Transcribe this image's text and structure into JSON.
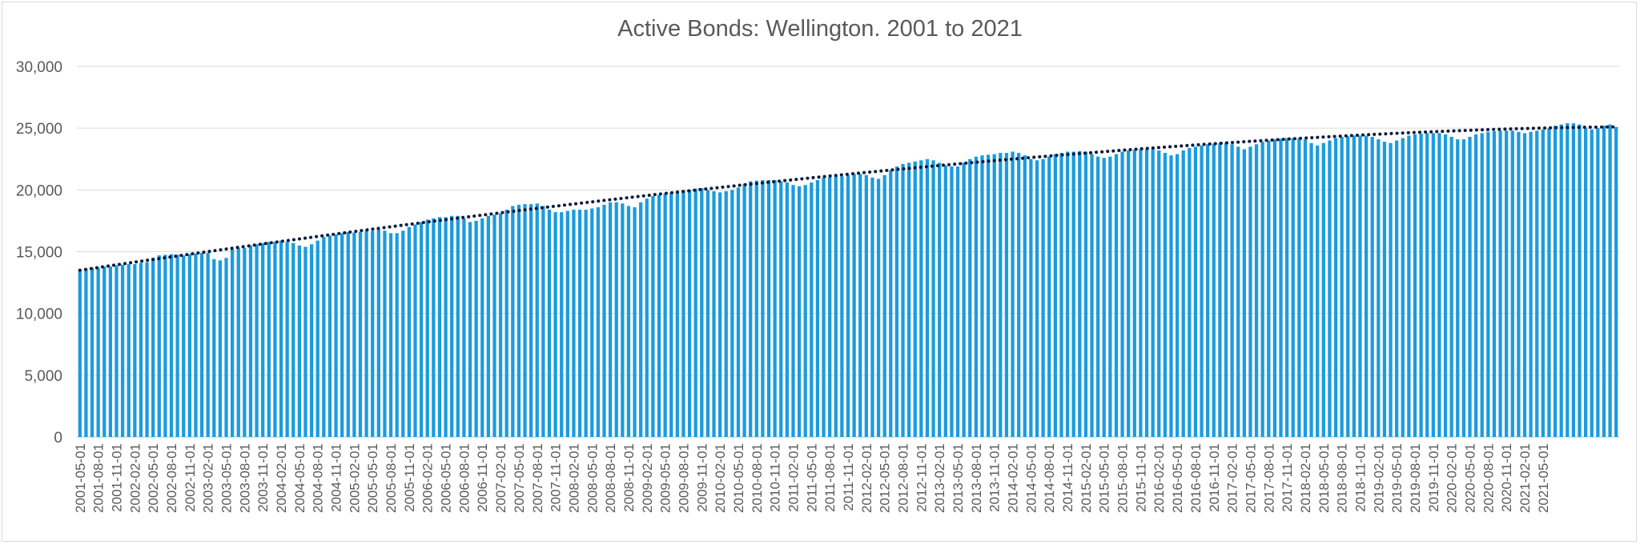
{
  "chart_data": {
    "type": "bar",
    "title": "Active Bonds: Wellington. 2001 to 2021",
    "xlabel": "",
    "ylabel": "",
    "ylim": [
      0,
      30000
    ],
    "y_ticks": [
      "0",
      "5,000",
      "10,000",
      "15,000",
      "20,000",
      "25,000",
      "30,000"
    ],
    "y_tick_values": [
      0,
      5000,
      10000,
      15000,
      20000,
      25000,
      30000
    ],
    "grid": true,
    "legend": "none",
    "x_start": "2001-05-01",
    "x_end": "2021-05-01",
    "x_label_step_months": 3,
    "bar_color": "#1b9be0",
    "trendline": {
      "type": "linear-ish",
      "style": "dotted",
      "color": "#0d1b3a",
      "start": 13500,
      "end": 25100
    },
    "x_tick_labels": [
      "2001-05-01",
      "2001-08-01",
      "2001-11-01",
      "2002-02-01",
      "2002-05-01",
      "2002-08-01",
      "2002-11-01",
      "2003-02-01",
      "2003-05-01",
      "2003-08-01",
      "2003-11-01",
      "2004-02-01",
      "2004-05-01",
      "2004-08-01",
      "2004-11-01",
      "2005-02-01",
      "2005-05-01",
      "2005-08-01",
      "2005-11-01",
      "2006-02-01",
      "2006-05-01",
      "2006-08-01",
      "2006-11-01",
      "2007-02-01",
      "2007-05-01",
      "2007-08-01",
      "2007-11-01",
      "2008-02-01",
      "2008-05-01",
      "2008-08-01",
      "2008-11-01",
      "2009-02-01",
      "2009-05-01",
      "2009-08-01",
      "2009-11-01",
      "2010-02-01",
      "2010-05-01",
      "2010-08-01",
      "2010-11-01",
      "2011-02-01",
      "2011-05-01",
      "2011-08-01",
      "2011-11-01",
      "2012-02-01",
      "2012-05-01",
      "2012-08-01",
      "2012-11-01",
      "2013-02-01",
      "2013-05-01",
      "2013-08-01",
      "2013-11-01",
      "2014-02-01",
      "2014-05-01",
      "2014-08-01",
      "2014-11-01",
      "2015-02-01",
      "2015-05-01",
      "2015-08-01",
      "2015-11-01",
      "2016-02-01",
      "2016-05-01",
      "2016-08-01",
      "2016-11-01",
      "2017-02-01",
      "2017-05-01",
      "2017-08-01",
      "2017-11-01",
      "2018-02-01",
      "2018-05-01",
      "2018-08-01",
      "2018-11-01",
      "2019-02-01",
      "2019-05-01",
      "2019-08-01",
      "2019-11-01",
      "2020-02-01",
      "2020-05-01",
      "2020-08-01",
      "2020-11-01",
      "2021-02-01",
      "2021-05-01"
    ],
    "series": [
      {
        "values": [
          13500,
          13600,
          13700,
          13700,
          13800,
          13800,
          13900,
          13950,
          14000,
          14000,
          14100,
          14150,
          14500,
          14700,
          14750,
          14800,
          14750,
          14700,
          14800,
          14850,
          14900,
          14900,
          14400,
          14300,
          14500,
          15200,
          15300,
          15300,
          15500,
          15600,
          15700,
          15800,
          15800,
          15900,
          15800,
          15700,
          15500,
          15400,
          15600,
          15900,
          16200,
          16300,
          16400,
          16500,
          16600,
          16550,
          16600,
          16700,
          16700,
          16800,
          16700,
          16500,
          16500,
          16700,
          17000,
          17200,
          17400,
          17600,
          17700,
          17800,
          17800,
          17900,
          17900,
          17700,
          17400,
          17500,
          17700,
          17900,
          18000,
          18100,
          18400,
          18700,
          18800,
          18850,
          18850,
          18900,
          18700,
          18400,
          18200,
          18200,
          18300,
          18400,
          18400,
          18400,
          18500,
          18600,
          18800,
          19000,
          19000,
          18900,
          18700,
          18600,
          19000,
          19300,
          19500,
          19600,
          19700,
          19800,
          19900,
          19950,
          20000,
          20100,
          20150,
          20000,
          19900,
          19800,
          19900,
          20000,
          20200,
          20500,
          20700,
          20750,
          20800,
          20800,
          20800,
          20700,
          20600,
          20400,
          20300,
          20400,
          20600,
          20800,
          21000,
          21050,
          21100,
          21100,
          21200,
          21300,
          21300,
          21200,
          21000,
          20900,
          21200,
          21600,
          21900,
          22100,
          22200,
          22300,
          22400,
          22500,
          22400,
          22200,
          22000,
          21900,
          21900,
          22200,
          22500,
          22700,
          22800,
          22850,
          22900,
          23000,
          23000,
          23100,
          23000,
          22800,
          22500,
          22400,
          22500,
          22700,
          22900,
          23000,
          23100,
          23100,
          23150,
          23100,
          22900,
          22700,
          22600,
          22700,
          22900,
          23100,
          23200,
          23250,
          23300,
          23300,
          23300,
          23200,
          23000,
          22800,
          22900,
          23200,
          23400,
          23500,
          23600,
          23700,
          23750,
          23800,
          23800,
          23700,
          23500,
          23300,
          23500,
          23700,
          23900,
          24000,
          24100,
          24150,
          24200,
          24200,
          24200,
          24100,
          23800,
          23600,
          23800,
          24000,
          24200,
          24300,
          24350,
          24400,
          24400,
          24400,
          24300,
          24100,
          23900,
          23800,
          24000,
          24200,
          24400,
          24500,
          24550,
          24600,
          24600,
          24600,
          24500,
          24300,
          24100,
          24100,
          24300,
          24500,
          24600,
          24700,
          24750,
          24800,
          24800,
          24800,
          24700,
          24600,
          24700,
          24800,
          24900,
          25000,
          25200,
          25300,
          25400,
          25400,
          25300,
          25000,
          24900,
          25000,
          25200,
          25300,
          25100
        ]
      }
    ]
  }
}
